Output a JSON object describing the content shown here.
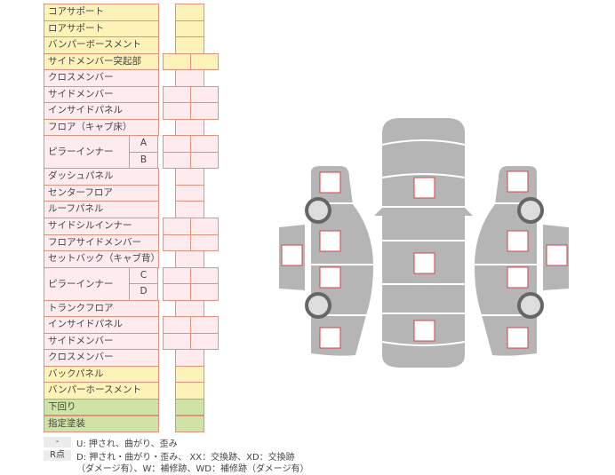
{
  "colors": {
    "front_rear": "#fdf2b8",
    "body": "#fdebee",
    "under": "#cfe3a6",
    "border": "#e0927f",
    "panel": "#b5b5b5",
    "marker": "#d0454a"
  },
  "rows": [
    {
      "label": "コアサポート",
      "type": "single",
      "color": "y"
    },
    {
      "label": "ロアサポート",
      "type": "single",
      "color": "y"
    },
    {
      "label": "バンパーボースメント",
      "type": "single",
      "color": "y"
    },
    {
      "label": "サイドメンバー突起部",
      "type": "double",
      "color": "y"
    },
    {
      "label": "クロスメンバー",
      "type": "single",
      "color": "p"
    },
    {
      "label": "サイドメンバー",
      "type": "double",
      "color": "p"
    },
    {
      "label": "インサイドパネル",
      "type": "double",
      "color": "p"
    },
    {
      "label": "フロア（キャブ床）",
      "type": "single",
      "color": "p"
    },
    {
      "label": "ピラーインナー",
      "type": "double",
      "color": "p",
      "subs": [
        "A",
        "B"
      ]
    },
    {
      "label": "ダッシュパネル",
      "type": "single",
      "color": "p"
    },
    {
      "label": "センターフロア",
      "type": "single",
      "color": "p"
    },
    {
      "label": "ルーフパネル",
      "type": "single",
      "color": "p"
    },
    {
      "label": "サイドシルインナー",
      "type": "double",
      "color": "p"
    },
    {
      "label": "フロアサイドメンバー",
      "type": "double",
      "color": "p"
    },
    {
      "label": "セットバック（キャブ背）",
      "type": "single",
      "color": "p"
    },
    {
      "label": "ピラーインナー",
      "type": "double",
      "color": "p",
      "subs": [
        "C",
        "D"
      ]
    },
    {
      "label": "トランクフロア",
      "type": "single",
      "color": "p"
    },
    {
      "label": "インサイドパネル",
      "type": "double",
      "color": "p"
    },
    {
      "label": "サイドメンバー",
      "type": "double",
      "color": "p"
    },
    {
      "label": "クロスメンバー",
      "type": "single",
      "color": "p"
    },
    {
      "label": "バックパネル",
      "type": "single",
      "color": "y"
    },
    {
      "label": "バンパーホースメント",
      "type": "single",
      "color": "y"
    },
    {
      "label": "下回り",
      "type": "single",
      "color": "g"
    },
    {
      "label": "指定塗装",
      "type": "single",
      "color": "g"
    }
  ],
  "legend": {
    "key1": "-",
    "text1": "U: 押され、曲がり、歪み",
    "key2": "R点",
    "text2": "D: 押され・曲がり・歪み、 XX：交換跡、XD：交換跡",
    "text3": "（ダメージ有）、W：補修跡、WD：補修跡（ダメージ有）"
  }
}
